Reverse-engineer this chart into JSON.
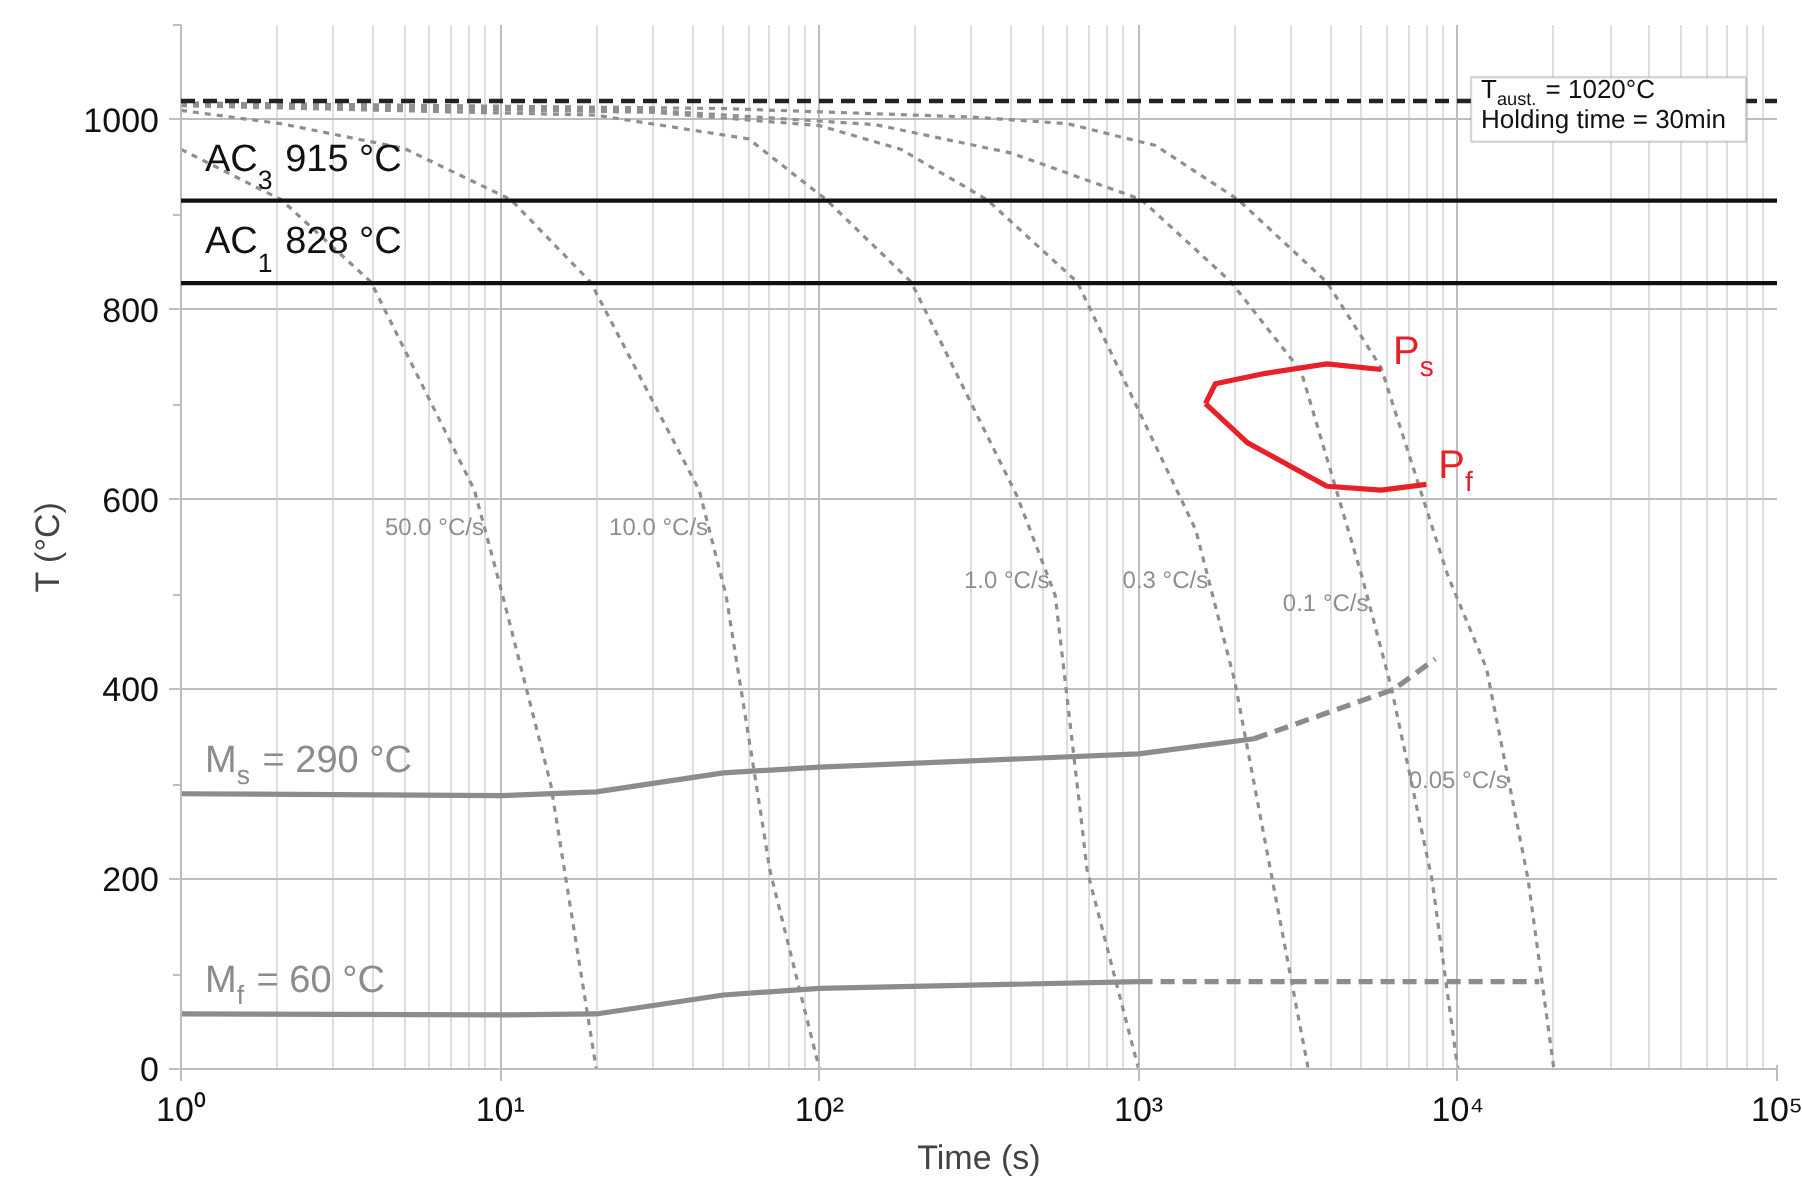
{
  "chart_data": {
    "type": "line",
    "xlabel": "Time (s)",
    "ylabel": "T (°C)",
    "log": "x",
    "grid": true,
    "xlim": [
      1,
      100000
    ],
    "ylim": [
      0,
      1100
    ],
    "xticks": [
      {
        "value": 1,
        "label": "10⁰"
      },
      {
        "value": 10,
        "label": "10¹"
      },
      {
        "value": 100,
        "label": "10²"
      },
      {
        "value": 1000,
        "label": "10³"
      },
      {
        "value": 10000,
        "label": "10⁴"
      },
      {
        "value": 100000,
        "label": "10⁵"
      }
    ],
    "yticks": [
      0,
      200,
      400,
      600,
      800,
      1000
    ],
    "series": [
      {
        "name": "50.0 °C/s",
        "color": "#8f8f8f",
        "line_style": "dotted",
        "x": [
          1,
          2.06,
          3.94,
          8.3,
          10,
          14.4,
          20
        ],
        "values": [
          969,
          916,
          829,
          610,
          509,
          300,
          0
        ]
      },
      {
        "name": "10.0 °C/s",
        "color": "#8f8f8f",
        "line_style": "dotted",
        "x": [
          1,
          2.06,
          5,
          10.8,
          19.2,
          42,
          51,
          70,
          100
        ],
        "values": [
          1010,
          996,
          970,
          916,
          829,
          610,
          499,
          209,
          0
        ]
      },
      {
        "name": "1.0 °C/s",
        "color": "#8f8f8f",
        "line_style": "dotted",
        "x": [
          1,
          20,
          60,
          105,
          194,
          417,
          548,
          690,
          1000
        ],
        "values": [
          1015,
          1005,
          980,
          916,
          829,
          603,
          499,
          209,
          0
        ]
      },
      {
        "name": "0.3 °C/s",
        "color": "#8f8f8f",
        "line_style": "dotted",
        "x": [
          1,
          30,
          100,
          180,
          335,
          643,
          1510,
          2000,
          3000,
          3400
        ],
        "values": [
          1016,
          1008,
          994,
          969,
          916,
          829,
          568,
          409,
          96,
          0
        ]
      },
      {
        "name": "0.1 °C/s",
        "color": "#8f8f8f",
        "line_style": "dotted",
        "x": [
          1,
          30,
          150,
          400,
          1020,
          1950,
          3230,
          5000,
          6200,
          8300,
          10000
        ],
        "values": [
          1017,
          1010,
          995,
          965,
          916,
          829,
          735,
          520,
          401,
          200,
          0
        ]
      },
      {
        "name": "0.05 °C/s",
        "color": "#8f8f8f",
        "line_style": "dotted",
        "x": [
          1,
          50,
          300,
          600,
          1130,
          2050,
          3890,
          5750,
          9300,
          12300,
          16600,
          20000
        ],
        "values": [
          1018,
          1012,
          1003,
          996,
          973,
          916,
          829,
          739,
          520,
          422,
          200,
          0
        ]
      },
      {
        "name": "M$_{s}$ = 290 °C",
        "color": "#8c8c8c",
        "line_style": "solid",
        "x": [
          1,
          10,
          20,
          50,
          100,
          1000,
          2300
        ],
        "values": [
          290,
          288,
          292,
          312,
          318,
          332,
          348
        ]
      },
      {
        "color": "#8c8c8c",
        "line_style": "dashed",
        "x": [
          2300,
          6300,
          8500
        ],
        "values": [
          348,
          400,
          432
        ]
      },
      {
        "name": "M$_{f}$ = 60 °C",
        "color": "#8c8c8c",
        "line_style": "solid",
        "x": [
          1,
          10,
          20,
          50,
          100,
          1000
        ],
        "values": [
          58,
          57,
          58,
          78,
          85,
          92
        ]
      },
      {
        "color": "#8c8c8c",
        "line_style": "dashed",
        "x": [
          1000,
          18000
        ],
        "values": [
          92,
          92
        ]
      },
      {
        "name": "P$_{s}$",
        "color": "#e8202a",
        "line_style": "solid",
        "x": [
          1620,
          1740,
          2500,
          3890,
          5750
        ],
        "values": [
          701,
          722,
          733,
          743,
          737
        ]
      },
      {
        "name": "P$_{f}$",
        "color": "#e8202a",
        "line_style": "solid",
        "x": [
          1620,
          2190,
          3890,
          5750,
          7970
        ],
        "values": [
          701,
          660,
          614,
          610,
          616
        ]
      }
    ],
    "ref_lines": [
      {
        "axis": "y",
        "value": 1020,
        "color": "#222222",
        "line_style": "dashed"
      },
      {
        "axis": "y",
        "value": 915,
        "label": "AC$_{3}$ 915 °C",
        "color": "#111111",
        "line_style": "solid"
      },
      {
        "axis": "y",
        "value": 828,
        "label": "AC$_{1}$ 828 °C",
        "color": "#111111",
        "line_style": "solid"
      }
    ],
    "annotations": [
      "T$_{aust.}$ = 1020°C",
      "Holding time = 30min"
    ]
  }
}
